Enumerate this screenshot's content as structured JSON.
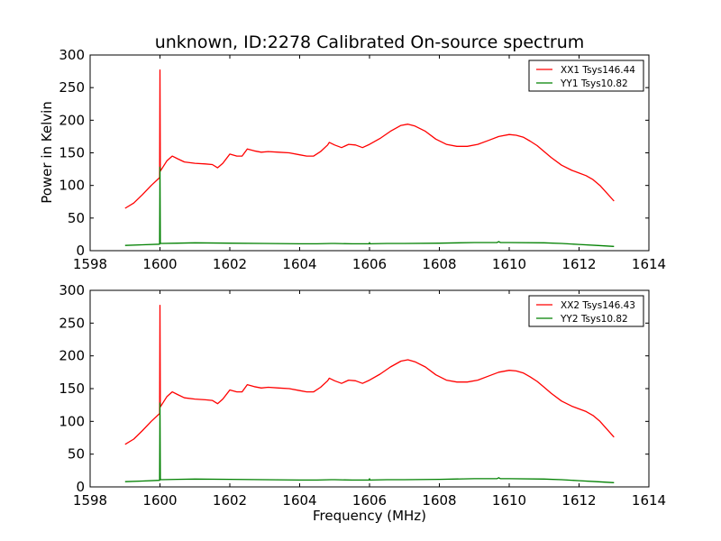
{
  "figure": {
    "title": "unknown, ID:2278 Calibrated On-source spectrum",
    "xlabel": "Frequency (MHz)",
    "ylabel": "Power in Kelvin"
  },
  "colors": {
    "red": "#ff0000",
    "green": "#008000",
    "axes": "#000000"
  },
  "chart_data": [
    {
      "type": "line",
      "title": "unknown, ID:2278 Calibrated On-source spectrum",
      "ylabel": "Power in Kelvin",
      "xlabel": "",
      "xlim": [
        1598,
        1614
      ],
      "ylim": [
        0,
        300
      ],
      "xticks": [
        1598,
        1600,
        1602,
        1604,
        1606,
        1608,
        1610,
        1612,
        1614
      ],
      "yticks": [
        0,
        50,
        100,
        150,
        200,
        250,
        300
      ],
      "grid": false,
      "legend_position": "upper-right",
      "series": [
        {
          "name": "XX1 Tsys146.44",
          "color": "#ff0000",
          "x": [
            1599.0,
            1599.25,
            1599.5,
            1599.75,
            1599.99,
            1600.0,
            1600.01,
            1600.2,
            1600.35,
            1600.5,
            1600.7,
            1601.0,
            1601.3,
            1601.5,
            1601.65,
            1601.8,
            1602.0,
            1602.2,
            1602.35,
            1602.5,
            1602.7,
            1602.9,
            1603.1,
            1603.4,
            1603.7,
            1604.0,
            1604.2,
            1604.4,
            1604.6,
            1604.8,
            1604.85,
            1605.0,
            1605.2,
            1605.4,
            1605.6,
            1605.8,
            1606.0,
            1606.3,
            1606.6,
            1606.9,
            1607.1,
            1607.3,
            1607.6,
            1607.9,
            1608.2,
            1608.5,
            1608.8,
            1609.1,
            1609.4,
            1609.7,
            1610.0,
            1610.2,
            1610.4,
            1610.6,
            1610.8,
            1611.0,
            1611.2,
            1611.5,
            1611.8,
            1612.0,
            1612.2,
            1612.4,
            1612.6,
            1612.8,
            1613.0
          ],
          "y": [
            65,
            73,
            86,
            100,
            112,
            277,
            122,
            138,
            145,
            141,
            136,
            134,
            133,
            132,
            127,
            134,
            148,
            145,
            145,
            156,
            153,
            151,
            152,
            151,
            150,
            147,
            145,
            145,
            152,
            162,
            166,
            162,
            158,
            163,
            162,
            158,
            163,
            172,
            183,
            192,
            194,
            191,
            183,
            171,
            163,
            160,
            160,
            163,
            169,
            175,
            178,
            177,
            174,
            168,
            161,
            152,
            143,
            131,
            123,
            119,
            115,
            109,
            100,
            88,
            76
          ]
        },
        {
          "name": "YY1 Tsys10.82",
          "color": "#008000",
          "x": [
            1599.0,
            1599.5,
            1599.99,
            1600.0,
            1600.01,
            1600.5,
            1601.0,
            1602.0,
            1603.0,
            1604.0,
            1604.5,
            1604.9,
            1605.0,
            1605.5,
            1605.99,
            1606.0,
            1606.01,
            1606.5,
            1607.0,
            1608.0,
            1609.0,
            1609.65,
            1609.7,
            1609.75,
            1610.0,
            1611.0,
            1611.5,
            1612.0,
            1612.5,
            1613.0
          ],
          "y": [
            8,
            9,
            10,
            128,
            11,
            11.5,
            12,
            11.5,
            11,
            10.5,
            10.5,
            11,
            11,
            10.5,
            10.5,
            12.5,
            10.5,
            11,
            11,
            11.5,
            12.5,
            12.5,
            14,
            12.5,
            12.5,
            12,
            11,
            9.5,
            8,
            6.5
          ]
        }
      ]
    },
    {
      "type": "line",
      "title": "",
      "ylabel": "",
      "xlabel": "Frequency (MHz)",
      "xlim": [
        1598,
        1614
      ],
      "ylim": [
        0,
        300
      ],
      "xticks": [
        1598,
        1600,
        1602,
        1604,
        1606,
        1608,
        1610,
        1612,
        1614
      ],
      "yticks": [
        0,
        50,
        100,
        150,
        200,
        250,
        300
      ],
      "grid": false,
      "legend_position": "upper-right",
      "series": [
        {
          "name": "XX2 Tsys146.43",
          "color": "#ff0000",
          "x": [
            1599.0,
            1599.25,
            1599.5,
            1599.75,
            1599.99,
            1600.0,
            1600.01,
            1600.2,
            1600.35,
            1600.5,
            1600.7,
            1601.0,
            1601.3,
            1601.5,
            1601.65,
            1601.8,
            1602.0,
            1602.2,
            1602.35,
            1602.5,
            1602.7,
            1602.9,
            1603.1,
            1603.4,
            1603.7,
            1604.0,
            1604.2,
            1604.4,
            1604.6,
            1604.8,
            1604.85,
            1605.0,
            1605.2,
            1605.4,
            1605.6,
            1605.8,
            1606.0,
            1606.3,
            1606.6,
            1606.9,
            1607.1,
            1607.3,
            1607.6,
            1607.9,
            1608.2,
            1608.5,
            1608.8,
            1609.1,
            1609.4,
            1609.7,
            1610.0,
            1610.2,
            1610.4,
            1610.6,
            1610.8,
            1611.0,
            1611.2,
            1611.5,
            1611.8,
            1612.0,
            1612.2,
            1612.4,
            1612.6,
            1612.8,
            1613.0
          ],
          "y": [
            65,
            73,
            86,
            100,
            112,
            277,
            122,
            138,
            145,
            141,
            136,
            134,
            133,
            132,
            127,
            134,
            148,
            145,
            145,
            156,
            153,
            151,
            152,
            151,
            150,
            147,
            145,
            145,
            152,
            162,
            166,
            162,
            158,
            163,
            162,
            158,
            163,
            172,
            183,
            192,
            194,
            191,
            183,
            171,
            163,
            160,
            160,
            163,
            169,
            175,
            178,
            177,
            174,
            168,
            161,
            152,
            143,
            131,
            123,
            119,
            115,
            109,
            100,
            88,
            76
          ]
        },
        {
          "name": "YY2 Tsys10.82",
          "color": "#008000",
          "x": [
            1599.0,
            1599.5,
            1599.99,
            1600.0,
            1600.01,
            1600.5,
            1601.0,
            1602.0,
            1603.0,
            1604.0,
            1604.5,
            1604.9,
            1605.0,
            1605.5,
            1605.99,
            1606.0,
            1606.01,
            1606.5,
            1607.0,
            1608.0,
            1609.0,
            1609.65,
            1609.7,
            1609.75,
            1610.0,
            1611.0,
            1611.5,
            1612.0,
            1612.5,
            1613.0
          ],
          "y": [
            8,
            9,
            10,
            128,
            11,
            11.5,
            12,
            11.5,
            11,
            10.5,
            10.5,
            11,
            11,
            10.5,
            10.5,
            12.5,
            10.5,
            11,
            11,
            11.5,
            12.5,
            12.5,
            14,
            12.5,
            12.5,
            12,
            11,
            9.5,
            8,
            6.5
          ]
        }
      ]
    }
  ]
}
